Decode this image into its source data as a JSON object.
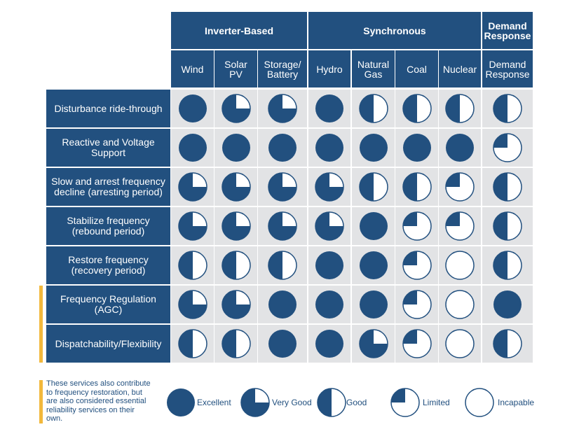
{
  "groups": [
    {
      "label": "Inverter-Based"
    },
    {
      "label": "Synchronous"
    },
    {
      "label": "Demand Response"
    }
  ],
  "columns": [
    "Wind",
    "Solar PV",
    "Storage/ Battery",
    "Hydro",
    "Natural Gas",
    "Coal",
    "Nuclear",
    "Demand Response"
  ],
  "rows": [
    {
      "label": "Disturbance ride-through",
      "ratings": [
        1,
        0.75,
        0.75,
        1,
        0.5,
        0.5,
        0.5,
        0.5
      ]
    },
    {
      "label": "Reactive and Voltage Support",
      "ratings": [
        1,
        1,
        1,
        1,
        1,
        1,
        1,
        0.25
      ]
    },
    {
      "label": "Slow and arrest frequency decline (arresting period)",
      "ratings": [
        0.75,
        0.75,
        0.75,
        0.75,
        0.5,
        0.5,
        0.25,
        0.5
      ]
    },
    {
      "label": "Stabilize frequency (rebound period)",
      "ratings": [
        0.75,
        0.75,
        0.75,
        0.75,
        1,
        0.25,
        0.25,
        0.5
      ]
    },
    {
      "label": "Restore frequency (recovery period)",
      "ratings": [
        0.5,
        0.5,
        0.5,
        1,
        1,
        0.25,
        0,
        0.5
      ]
    },
    {
      "label": "Frequency Regulation (AGC)",
      "ratings": [
        0.75,
        0.75,
        1,
        1,
        1,
        0.25,
        0,
        1
      ]
    },
    {
      "label": "Dispatchability/Flexibility",
      "ratings": [
        0.5,
        0.5,
        1,
        1,
        0.75,
        0.25,
        0,
        0.5
      ]
    }
  ],
  "footnote": "These services also contribute to frequency restoration, but are also considered essential reliability services on their own.",
  "legend": [
    {
      "label": "Excellent",
      "value": 1
    },
    {
      "label": "Very Good",
      "value": 0.75
    },
    {
      "label": "Good",
      "value": 0.5
    },
    {
      "label": "Limited",
      "value": 0.25
    },
    {
      "label": "Incapable",
      "value": 0
    }
  ],
  "colors": {
    "primary": "#22507f",
    "cell": "#e2e3e5",
    "highlight": "#f2b83c"
  }
}
